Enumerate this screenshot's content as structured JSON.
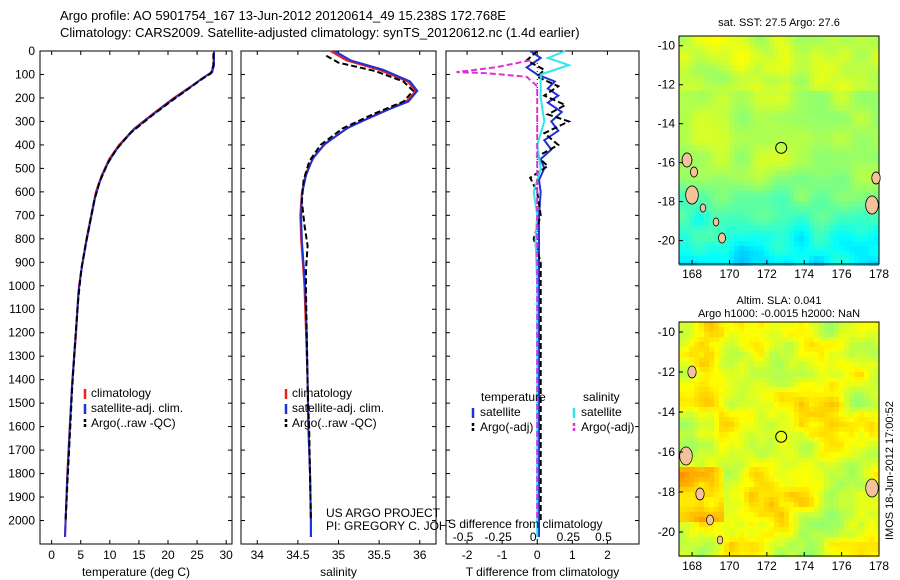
{
  "header": {
    "line1": "Argo profile: AO 5901754_167 13-Jun-2012 20120614_49 15.238S 172.768E",
    "line2": "Climatology: CARS2009. Satellite-adjusted climatology: synTS_20120612.nc (1.4d earlier)"
  },
  "chart_data": [
    {
      "type": "line",
      "xlabel": "temperature (deg C)",
      "ylabel": "",
      "xlim": [
        -2,
        31
      ],
      "ylim": [
        2100,
        0
      ],
      "x_ticks": [
        0,
        5,
        10,
        15,
        20,
        25,
        30
      ],
      "y_ticks": [
        0,
        100,
        200,
        300,
        400,
        500,
        600,
        700,
        800,
        900,
        1000,
        1100,
        1200,
        1300,
        1400,
        1500,
        1600,
        1700,
        1800,
        1900,
        2000
      ],
      "legend": [
        "climatology",
        "satellite-adj. clim.",
        "Argo(..raw -QC)"
      ],
      "legend_position": "lower-center",
      "series": [
        {
          "name": "climatology",
          "color": "#e8231b",
          "style": "solid",
          "points": [
            [
              27.9,
              0
            ],
            [
              27.8,
              60
            ],
            [
              27.5,
              90
            ],
            [
              26.3,
              110
            ],
            [
              24,
              150
            ],
            [
              21,
              200
            ],
            [
              17.8,
              260
            ],
            [
              14.2,
              330
            ],
            [
              11.6,
              400
            ],
            [
              9.9,
              460
            ],
            [
              8.6,
              530
            ],
            [
              7.6,
              600
            ],
            [
              6.8,
              700
            ],
            [
              6,
              800
            ],
            [
              5.3,
              900
            ],
            [
              4.7,
              1000
            ],
            [
              4.2,
              1200
            ],
            [
              3.6,
              1400
            ],
            [
              3.1,
              1600
            ],
            [
              2.7,
              1800
            ],
            [
              2.4,
              2000
            ],
            [
              2.3,
              2070
            ]
          ]
        },
        {
          "name": "satellite-adj. clim.",
          "color": "#1f30d8",
          "style": "solid",
          "points": [
            [
              27.9,
              0
            ],
            [
              27.9,
              60
            ],
            [
              27.6,
              90
            ],
            [
              26,
              115
            ],
            [
              23.5,
              160
            ],
            [
              20.6,
              210
            ],
            [
              17.4,
              270
            ],
            [
              13.9,
              340
            ],
            [
              11.4,
              410
            ],
            [
              9.8,
              470
            ],
            [
              8.5,
              540
            ],
            [
              7.5,
              620
            ],
            [
              6.7,
              720
            ],
            [
              5.9,
              820
            ],
            [
              5.2,
              920
            ],
            [
              4.6,
              1030
            ],
            [
              4.1,
              1220
            ],
            [
              3.5,
              1420
            ],
            [
              3.1,
              1620
            ],
            [
              2.7,
              1820
            ],
            [
              2.4,
              2000
            ],
            [
              2.3,
              2070
            ]
          ]
        },
        {
          "name": "Argo(..raw -QC)",
          "color": "#000000",
          "style": "dashed",
          "points": [
            [
              27.8,
              10
            ],
            [
              27.8,
              60
            ],
            [
              27.4,
              95
            ],
            [
              25.8,
              120
            ],
            [
              23,
              170
            ],
            [
              20.2,
              220
            ],
            [
              17,
              280
            ],
            [
              13.5,
              350
            ],
            [
              11.1,
              420
            ],
            [
              9.6,
              480
            ],
            [
              8.2,
              560
            ],
            [
              7.3,
              640
            ],
            [
              6.5,
              740
            ],
            [
              5.8,
              830
            ],
            [
              5.1,
              930
            ],
            [
              4.6,
              1050
            ],
            [
              4,
              1250
            ],
            [
              3.5,
              1450
            ],
            [
              3.1,
              1650
            ],
            [
              2.7,
              1850
            ],
            [
              2.4,
              2000
            ]
          ]
        }
      ]
    },
    {
      "type": "line",
      "xlabel": "salinity",
      "xlim": [
        33.8,
        36.2
      ],
      "ylim": [
        2100,
        0
      ],
      "x_ticks": [
        34,
        34.5,
        35,
        35.5,
        36
      ],
      "legend": [
        "climatology",
        "satellite-adj. clim.",
        "Argo(..raw -QC)"
      ],
      "legend_position": "lower-center",
      "annotation": [
        "US ARGO PROJECT",
        "PI: GREGORY C. JOHNSON"
      ],
      "series": [
        {
          "name": "climatology",
          "color": "#e8231b",
          "style": "solid",
          "points": [
            [
              34.9,
              0
            ],
            [
              35.1,
              40
            ],
            [
              35.5,
              80
            ],
            [
              35.85,
              130
            ],
            [
              35.95,
              170
            ],
            [
              35.85,
              210
            ],
            [
              35.55,
              260
            ],
            [
              35.15,
              320
            ],
            [
              34.85,
              390
            ],
            [
              34.7,
              450
            ],
            [
              34.6,
              520
            ],
            [
              34.55,
              600
            ],
            [
              34.53,
              700
            ],
            [
              34.54,
              800
            ],
            [
              34.56,
              900
            ],
            [
              34.58,
              1000
            ],
            [
              34.6,
              1200
            ],
            [
              34.62,
              1400
            ],
            [
              34.63,
              1600
            ],
            [
              34.65,
              1800
            ],
            [
              34.66,
              2000
            ],
            [
              34.66,
              2070
            ]
          ]
        },
        {
          "name": "satellite-adj. clim.",
          "color": "#1f30d8",
          "style": "solid",
          "points": [
            [
              34.95,
              0
            ],
            [
              35.15,
              40
            ],
            [
              35.55,
              80
            ],
            [
              35.88,
              130
            ],
            [
              35.97,
              170
            ],
            [
              35.86,
              215
            ],
            [
              35.5,
              265
            ],
            [
              35.1,
              330
            ],
            [
              34.82,
              400
            ],
            [
              34.68,
              460
            ],
            [
              34.6,
              530
            ],
            [
              34.55,
              610
            ],
            [
              34.54,
              710
            ],
            [
              34.55,
              810
            ],
            [
              34.57,
              910
            ],
            [
              34.59,
              1010
            ],
            [
              34.61,
              1210
            ],
            [
              34.62,
              1410
            ],
            [
              34.63,
              1610
            ],
            [
              34.65,
              1810
            ],
            [
              34.66,
              2000
            ],
            [
              34.66,
              2070
            ]
          ]
        },
        {
          "name": "Argo(..raw -QC)",
          "color": "#000000",
          "style": "dashed",
          "points": [
            [
              34.85,
              20
            ],
            [
              35,
              50
            ],
            [
              35.45,
              85
            ],
            [
              35.8,
              130
            ],
            [
              35.92,
              170
            ],
            [
              35.8,
              215
            ],
            [
              35.42,
              270
            ],
            [
              35.05,
              330
            ],
            [
              34.78,
              400
            ],
            [
              34.64,
              470
            ],
            [
              34.57,
              550
            ],
            [
              34.55,
              640
            ],
            [
              34.58,
              740
            ],
            [
              34.62,
              830
            ],
            [
              34.6,
              930
            ],
            [
              34.6,
              1030
            ],
            [
              34.61,
              1230
            ],
            [
              34.62,
              1430
            ],
            [
              34.64,
              1630
            ],
            [
              34.65,
              1830
            ],
            [
              34.66,
              2000
            ]
          ]
        }
      ]
    },
    {
      "type": "line",
      "xlabel": "T difference from climatology",
      "xlabel_secondary": "S difference from climatology",
      "xlim": [
        -2.6,
        2.9
      ],
      "ylim": [
        2100,
        0
      ],
      "x_ticks": [
        -2,
        -1,
        0,
        1,
        2
      ],
      "x_ticks_secondary": [
        "-0.5",
        "-0.25",
        "0",
        "0.25",
        "0.5"
      ],
      "legend_left_title": "temperature",
      "legend_right_title": "salinity",
      "legend": [
        "satellite",
        "Argo(-adj)",
        "satellite",
        "Argo(-adj)"
      ],
      "legend_position": "lower-center",
      "series": [
        {
          "name": "satellite",
          "group": "temperature",
          "color": "#1f30d8",
          "style": "solid",
          "points": [
            [
              -0.2,
              0
            ],
            [
              0.1,
              30
            ],
            [
              -0.3,
              70
            ],
            [
              0,
              100
            ],
            [
              0.5,
              130
            ],
            [
              0.3,
              160
            ],
            [
              0.6,
              190
            ],
            [
              0.3,
              220
            ],
            [
              0.7,
              260
            ],
            [
              0.4,
              300
            ],
            [
              0.6,
              340
            ],
            [
              0.2,
              380
            ],
            [
              0.4,
              420
            ],
            [
              0.1,
              460
            ],
            [
              0.2,
              500
            ],
            [
              0.05,
              550
            ],
            [
              0.1,
              600
            ],
            [
              0.05,
              700
            ],
            [
              0.05,
              800
            ],
            [
              0.05,
              1000
            ],
            [
              0.05,
              1500
            ],
            [
              0.05,
              2070
            ]
          ]
        },
        {
          "name": "Argo(-adj)",
          "group": "temperature",
          "color": "#000000",
          "style": "dashed",
          "points": [
            [
              0,
              0
            ],
            [
              -0.3,
              40
            ],
            [
              0.2,
              80
            ],
            [
              0,
              110
            ],
            [
              0.6,
              150
            ],
            [
              0.2,
              190
            ],
            [
              0.8,
              230
            ],
            [
              0.3,
              270
            ],
            [
              0.9,
              300
            ],
            [
              0.2,
              350
            ],
            [
              0.6,
              400
            ],
            [
              0,
              450
            ],
            [
              0.3,
              490
            ],
            [
              -0.2,
              540
            ],
            [
              0,
              600
            ],
            [
              0.1,
              700
            ],
            [
              -0.1,
              800
            ],
            [
              0.1,
              900
            ],
            [
              0.1,
              1000
            ],
            [
              0.1,
              1500
            ],
            [
              0.1,
              2000
            ]
          ]
        },
        {
          "name": "satellite",
          "group": "salinity",
          "color": "#2fe6ee",
          "style": "solid",
          "points": [
            [
              0.8,
              0
            ],
            [
              0.3,
              30
            ],
            [
              0.9,
              60
            ],
            [
              0.1,
              100
            ],
            [
              0.1,
              200
            ],
            [
              0.2,
              300
            ],
            [
              0,
              400
            ],
            [
              0.1,
              500
            ],
            [
              -0.1,
              600
            ],
            [
              0,
              700
            ],
            [
              -0.05,
              800
            ],
            [
              0,
              1000
            ],
            [
              0,
              1500
            ],
            [
              0,
              2070
            ]
          ]
        },
        {
          "name": "Argo(-adj)",
          "group": "salinity",
          "color": "#e030d8",
          "style": "dashed",
          "points": [
            [
              -0.2,
              40
            ],
            [
              -1.2,
              70
            ],
            [
              -2.3,
              90
            ],
            [
              -1.4,
              95
            ],
            [
              -0.3,
              110
            ],
            [
              0,
              150
            ],
            [
              0,
              400
            ],
            [
              0,
              1000
            ],
            [
              0,
              2000
            ]
          ]
        }
      ]
    },
    {
      "type": "heatmap",
      "title": "sat. SST: 27.5  Argo: 27.6",
      "xlim": [
        167.3,
        178
      ],
      "ylim": [
        -21.2,
        -9.5
      ],
      "x_ticks": [
        168,
        170,
        172,
        174,
        176,
        178
      ],
      "y_ticks": [
        -10,
        -12,
        -14,
        -16,
        -18,
        -20
      ],
      "marker": {
        "lon": 172.768,
        "lat": -15.238
      }
    },
    {
      "type": "heatmap",
      "title": "Altim. SLA: 0.041",
      "subtitle": "Argo h1000: -0.0015  h2000: NaN",
      "xlim": [
        167.3,
        178
      ],
      "ylim": [
        -21.2,
        -9.5
      ],
      "x_ticks": [
        168,
        170,
        172,
        174,
        176,
        178
      ],
      "y_ticks": [
        -10,
        -12,
        -14,
        -16,
        -18,
        -20
      ],
      "marker": {
        "lon": 172.768,
        "lat": -15.238
      }
    }
  ],
  "footer": {
    "stamp": "IMOS 18-Jun-2012 17:00:52"
  },
  "colors": {
    "climatology": "#e8231b",
    "satellite": "#1f30d8",
    "argo": "#000000",
    "sal_satellite": "#2fe6ee",
    "sal_argo": "#e030d8"
  }
}
